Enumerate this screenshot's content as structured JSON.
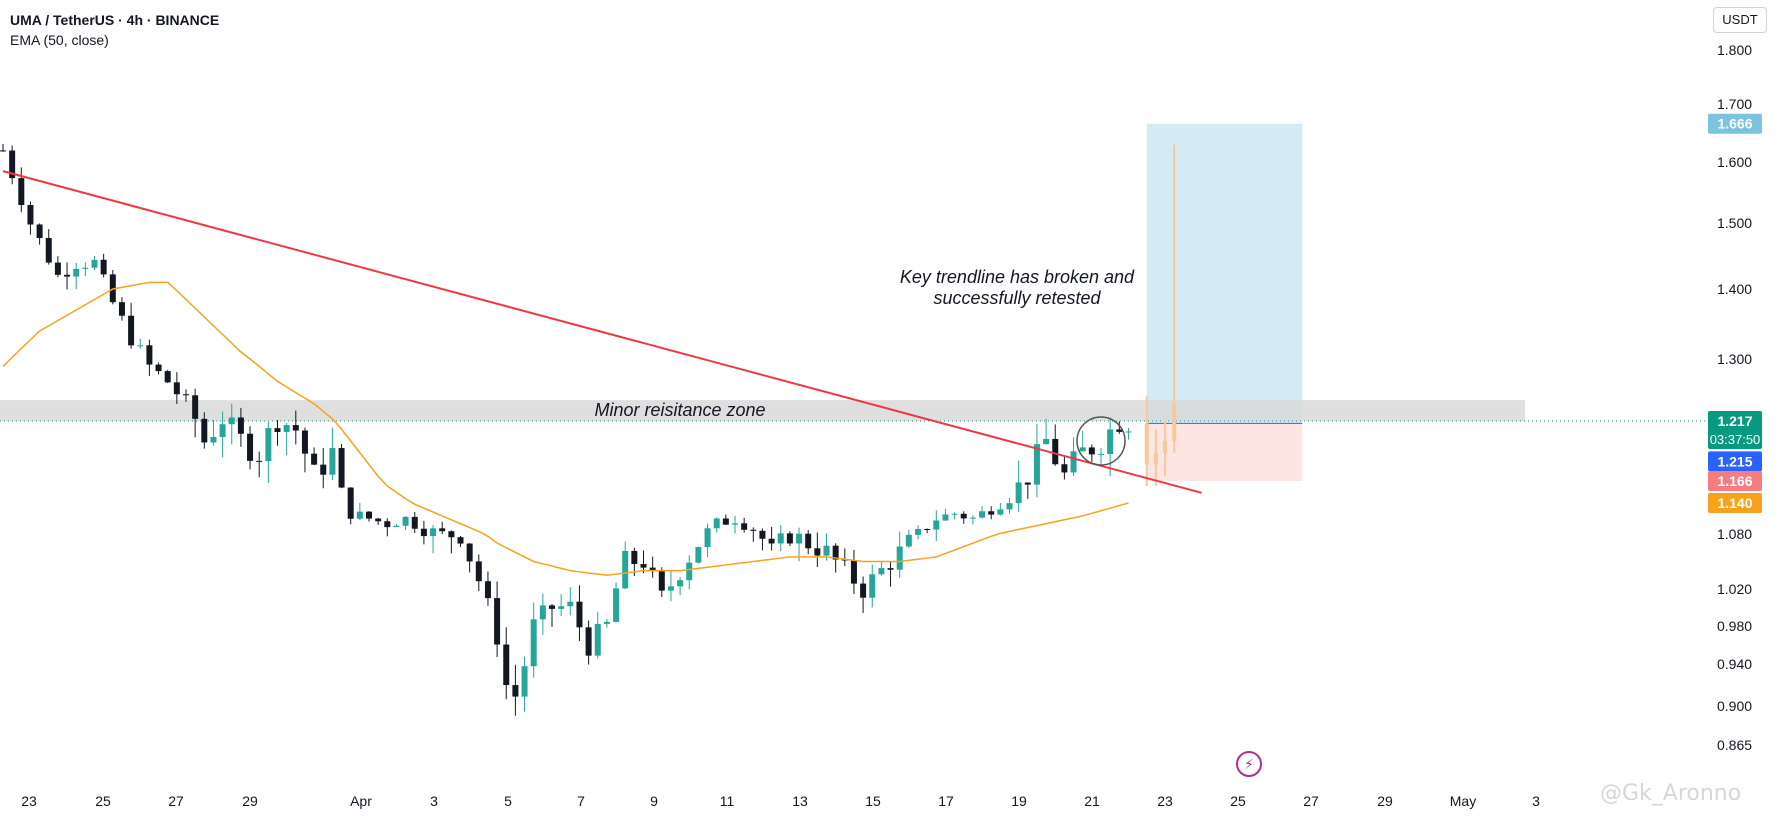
{
  "header": {
    "title": "UMA / TetherUS · 4h · BINANCE",
    "indicator": "EMA (50, close)"
  },
  "currency_button": "USDT",
  "watermark": "@Gk_Aronno",
  "colors": {
    "up": "#26a69a",
    "down": "#131722",
    "trendline": "#f23645",
    "ema": "#f7a21b",
    "target_zone": "#cfe9f4",
    "stop_zone": "#fde2e0",
    "resistance_zone": "#d9d9d9",
    "last_price_badge": "#089981",
    "entry_badge": "#2962ff",
    "target_badge": "#7cc4dd",
    "stop_badge": "#f77c80",
    "ema_badge": "#f7a21b"
  },
  "chart_data": {
    "type": "candlestick",
    "symbol": "UMA / TetherUS",
    "timeframe": "4h",
    "exchange": "BINANCE",
    "y_axis_ticks": [
      "1.800",
      "1.700",
      "1.600",
      "1.500",
      "1.400",
      "1.300",
      "1.080",
      "1.020",
      "0.980",
      "0.940",
      "0.900",
      "0.865"
    ],
    "y_tick_values": [
      1.8,
      1.7,
      1.6,
      1.5,
      1.4,
      1.3,
      1.08,
      1.02,
      0.98,
      0.94,
      0.9,
      0.865
    ],
    "x_axis_ticks": [
      "23",
      "25",
      "27",
      "29",
      "Apr",
      "3",
      "5",
      "7",
      "9",
      "11",
      "13",
      "15",
      "17",
      "19",
      "21",
      "23",
      "25",
      "27",
      "29",
      "May",
      "3"
    ],
    "price_badges": [
      {
        "label": "1.666",
        "value": 1.666,
        "role": "target"
      },
      {
        "label": "1.217",
        "value": 1.217,
        "role": "last",
        "countdown": "03:37:50"
      },
      {
        "label": "1.215",
        "value": 1.215,
        "role": "entry"
      },
      {
        "label": "1.166",
        "value": 1.166,
        "role": "stop"
      },
      {
        "label": "1.140",
        "value": 1.14,
        "role": "ema"
      }
    ],
    "series": [
      {
        "name": "EMA (50, close)",
        "type": "line"
      }
    ],
    "close_path": [
      [
        0,
        1.62
      ],
      [
        3,
        1.5
      ],
      [
        6,
        1.42
      ],
      [
        8,
        1.44
      ],
      [
        10,
        1.44
      ],
      [
        12,
        1.38
      ],
      [
        14,
        1.33
      ],
      [
        16,
        1.29
      ],
      [
        18,
        1.27
      ],
      [
        20,
        1.24
      ],
      [
        22,
        1.2
      ],
      [
        24,
        1.22
      ],
      [
        26,
        1.2
      ],
      [
        28,
        1.19
      ],
      [
        30,
        1.22
      ],
      [
        32,
        1.21
      ],
      [
        34,
        1.17
      ],
      [
        36,
        1.19
      ],
      [
        37,
        1.15
      ],
      [
        38,
        1.12
      ],
      [
        40,
        1.11
      ],
      [
        42,
        1.1
      ],
      [
        44,
        1.11
      ],
      [
        46,
        1.09
      ],
      [
        48,
        1.08
      ],
      [
        50,
        1.08
      ],
      [
        52,
        1.03
      ],
      [
        54,
        0.97
      ],
      [
        55,
        0.92
      ],
      [
        56,
        0.91
      ],
      [
        57,
        0.94
      ],
      [
        58,
        0.98
      ],
      [
        60,
        1.0
      ],
      [
        62,
        1.0
      ],
      [
        64,
        0.96
      ],
      [
        66,
        0.98
      ],
      [
        67,
        1.02
      ],
      [
        68,
        1.05
      ],
      [
        70,
        1.05
      ],
      [
        72,
        1.01
      ],
      [
        74,
        1.04
      ],
      [
        76,
        1.07
      ],
      [
        78,
        1.1
      ],
      [
        80,
        1.11
      ],
      [
        82,
        1.09
      ],
      [
        84,
        1.06
      ],
      [
        86,
        1.08
      ],
      [
        88,
        1.07
      ],
      [
        90,
        1.06
      ],
      [
        92,
        1.04
      ],
      [
        94,
        1.02
      ],
      [
        96,
        1.04
      ],
      [
        98,
        1.06
      ],
      [
        100,
        1.08
      ],
      [
        102,
        1.11
      ],
      [
        104,
        1.12
      ],
      [
        106,
        1.11
      ],
      [
        108,
        1.13
      ],
      [
        110,
        1.15
      ],
      [
        112,
        1.17
      ],
      [
        114,
        1.2
      ],
      [
        116,
        1.17
      ],
      [
        118,
        1.19
      ],
      [
        120,
        1.2
      ],
      [
        122,
        1.218
      ],
      [
        123,
        1.217
      ]
    ],
    "ema_path": [
      [
        0,
        1.29
      ],
      [
        4,
        1.34
      ],
      [
        8,
        1.37
      ],
      [
        12,
        1.4
      ],
      [
        16,
        1.41
      ],
      [
        18,
        1.41
      ],
      [
        22,
        1.36
      ],
      [
        26,
        1.31
      ],
      [
        30,
        1.27
      ],
      [
        34,
        1.24
      ],
      [
        38,
        1.2
      ],
      [
        42,
        1.16
      ],
      [
        46,
        1.13
      ],
      [
        50,
        1.1
      ],
      [
        54,
        1.07
      ],
      [
        58,
        1.05
      ],
      [
        62,
        1.04
      ],
      [
        66,
        1.035
      ],
      [
        70,
        1.04
      ],
      [
        74,
        1.04
      ],
      [
        78,
        1.045
      ],
      [
        82,
        1.05
      ],
      [
        86,
        1.055
      ],
      [
        90,
        1.055
      ],
      [
        94,
        1.05
      ],
      [
        98,
        1.05
      ],
      [
        102,
        1.055
      ],
      [
        106,
        1.07
      ],
      [
        110,
        1.085
      ],
      [
        114,
        1.1
      ],
      [
        118,
        1.115
      ],
      [
        123,
        1.14
      ]
    ],
    "annotations": [
      {
        "text_line1": "Key trendline has broken and",
        "text_line2": "successfully retested"
      },
      {
        "text": "Minor reisitance zone",
        "zone": [
          1.217,
          1.245
        ]
      }
    ],
    "trendline": {
      "from": [
        0,
        1.585
      ],
      "to": [
        131,
        1.152
      ]
    },
    "position": {
      "type": "long",
      "entry": 1.215,
      "target": 1.666,
      "stop": 1.166
    }
  }
}
